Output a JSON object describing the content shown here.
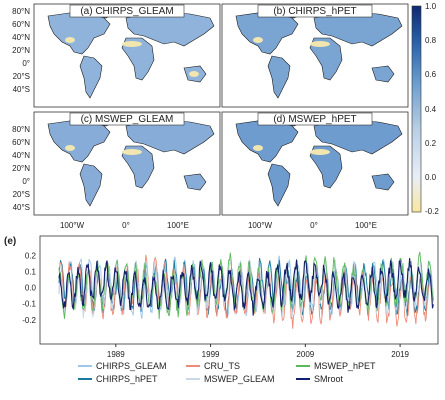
{
  "maps": {
    "panels": [
      {
        "title": "(a) CHIRPS_GLEAM"
      },
      {
        "title": "(b) CHIRPS_hPET"
      },
      {
        "title": "(c) MSWEP_GLEAM"
      },
      {
        "title": "(d) MSWEP_hPET"
      }
    ],
    "lat_ticks": [
      "80°N",
      "60°N",
      "40°N",
      "20°N",
      "0°",
      "20°S",
      "40°S"
    ],
    "lon_ticks": [
      "100°W",
      "0°",
      "100°E"
    ],
    "colorbar": {
      "ticks": [
        "1.0",
        "0.8",
        "0.6",
        "0.4",
        "0.2",
        "0.0",
        "-0.2"
      ],
      "range": [
        -0.2,
        1.0
      ],
      "colors": [
        "#f9e7a0",
        "#e8eef6",
        "#b9cfe6",
        "#6e9fcd",
        "#2a5ea8",
        "#0d2a70"
      ]
    }
  },
  "chart_data": {
    "type": "line",
    "panel_label": "(e)",
    "x_ticks": [
      "1989",
      "1999",
      "2009",
      "2019"
    ],
    "xlim": [
      1981,
      2023
    ],
    "ylim": [
      -0.35,
      0.32
    ],
    "y_ticks": [
      "0.2",
      "0.1",
      "0.0",
      "-0.1",
      "-0.2"
    ],
    "series": [
      {
        "name": "CHIRPS_GLEAM",
        "color": "#9fc7e8",
        "amp": 0.15,
        "trend": 0.0
      },
      {
        "name": "CHIRPS_hPET",
        "color": "#1b7a9b",
        "amp": 0.14,
        "trend": 0.0
      },
      {
        "name": "CRU_TS",
        "color": "#f08a78",
        "amp": 0.16,
        "trend": -0.06
      },
      {
        "name": "MSWEP_GLEAM",
        "color": "#c9d9e8",
        "amp": 0.15,
        "trend": 0.0
      },
      {
        "name": "MSWEP_hPET",
        "color": "#5cb85c",
        "amp": 0.16,
        "trend": 0.02
      },
      {
        "name": "SMroot",
        "color": "#14206b",
        "amp": 0.13,
        "trend": 0.01
      }
    ]
  }
}
